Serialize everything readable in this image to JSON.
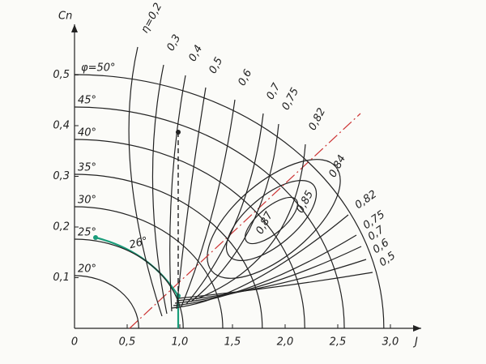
{
  "axes": {
    "y_label": "Cn",
    "x_label": "J",
    "x_ticks": [
      "0",
      "0,5",
      "1,0",
      "1,5",
      "2,0",
      "2,5",
      "3,0"
    ],
    "y_ticks": [
      "0,1",
      "0,2",
      "0,3",
      "0,4",
      "0,5"
    ]
  },
  "phi_labels": [
    "φ=50°",
    "45°",
    "40°",
    "35°",
    "30°",
    "25°",
    "20°"
  ],
  "path_label": "26°",
  "eta_labels": [
    "η=0,2",
    "0,3",
    "0,4",
    "0,5",
    "0,6",
    "0,7",
    "0,75",
    "0,82"
  ],
  "eta_inner_labels": [
    "0,84",
    "0,85",
    "0,87"
  ],
  "eta_right_labels": [
    "0,82",
    "0,75",
    "0,7",
    "0,6",
    "0,5"
  ]
}
